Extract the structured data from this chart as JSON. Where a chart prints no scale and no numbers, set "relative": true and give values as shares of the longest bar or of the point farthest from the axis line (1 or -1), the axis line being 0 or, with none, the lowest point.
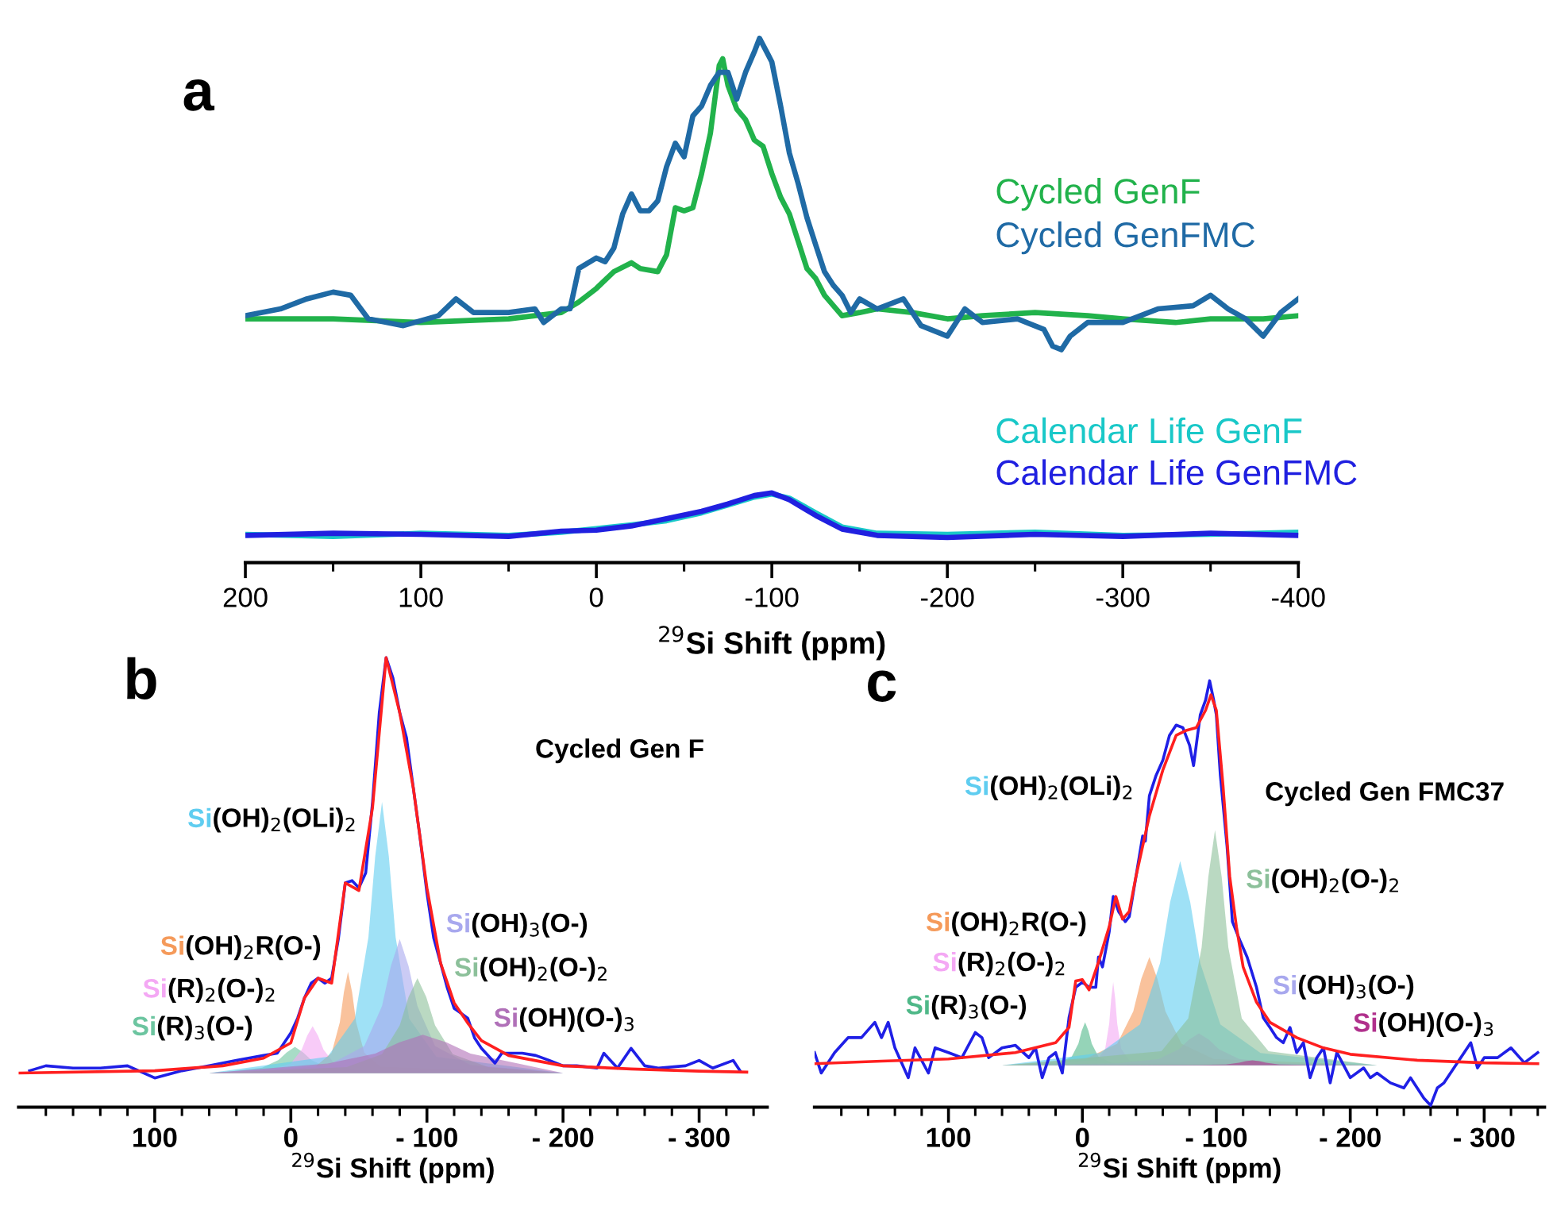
{
  "chart_data": [
    {
      "type": "line",
      "title": "a",
      "xlabel": "$^{29}$Si Shift (ppm)",
      "relative": true,
      "legend": "right",
      "grid": false,
      "xlim": [
        200,
        -400
      ],
      "xticks": [
        200,
        {
          "value": 150,
          "label": null
        },
        100,
        {
          "value": 50,
          "label": null
        },
        0,
        {
          "value": -50,
          "label": null
        },
        -100,
        {
          "value": -150,
          "label": null
        },
        -200,
        {
          "value": -250,
          "label": null
        },
        -300,
        {
          "value": -350,
          "label": null
        },
        -400
      ],
      "series": [
        {
          "name": "Cycled GenF",
          "color": "#21b24b",
          "x": [
            200,
            150,
            100,
            50,
            20,
            10,
            0,
            -10,
            -20,
            -25,
            -35,
            -40,
            -45,
            -50,
            -55,
            -60,
            -65,
            -70,
            -72,
            -75,
            -80,
            -85,
            -90,
            -95,
            -100,
            -105,
            -110,
            -115,
            -120,
            -125,
            -130,
            -140,
            -150,
            -160,
            -180,
            -200,
            -220,
            -250,
            -280,
            -300,
            -330,
            -350,
            -380,
            -400
          ],
          "values": [
            0.465,
            0.465,
            0.458,
            0.465,
            0.477,
            0.497,
            0.523,
            0.555,
            0.572,
            0.561,
            0.555,
            0.587,
            0.677,
            0.671,
            0.677,
            0.742,
            0.819,
            0.948,
            0.961,
            0.91,
            0.865,
            0.845,
            0.806,
            0.794,
            0.742,
            0.697,
            0.665,
            0.613,
            0.561,
            0.542,
            0.51,
            0.471,
            0.477,
            0.484,
            0.477,
            0.465,
            0.471,
            0.477,
            0.471,
            0.465,
            0.458,
            0.465,
            0.465,
            0.471
          ]
        },
        {
          "name": "Cycled GenFMC",
          "color": "#1f6aa5",
          "x": [
            200,
            180,
            165,
            150,
            140,
            130,
            110,
            90,
            80,
            70,
            50,
            35,
            30,
            20,
            15,
            10,
            0,
            -5,
            -10,
            -15,
            -20,
            -25,
            -30,
            -35,
            -40,
            -45,
            -50,
            -55,
            -60,
            -65,
            -70,
            -75,
            -80,
            -85,
            -90,
            -93,
            -98,
            -100,
            -105,
            -110,
            -115,
            -120,
            -125,
            -130,
            -135,
            -140,
            -145,
            -150,
            -160,
            -175,
            -185,
            -200,
            -210,
            -220,
            -240,
            -255,
            -260,
            -265,
            -270,
            -280,
            -300,
            -320,
            -340,
            -350,
            -360,
            -370,
            -380,
            -390,
            -400
          ],
          "values": [
            0.471,
            0.484,
            0.503,
            0.516,
            0.51,
            0.465,
            0.452,
            0.471,
            0.503,
            0.477,
            0.477,
            0.484,
            0.458,
            0.484,
            0.484,
            0.561,
            0.581,
            0.574,
            0.6,
            0.665,
            0.703,
            0.671,
            0.671,
            0.69,
            0.755,
            0.8,
            0.774,
            0.852,
            0.871,
            0.91,
            0.935,
            0.935,
            0.884,
            0.935,
            0.974,
            1.0,
            0.968,
            0.955,
            0.871,
            0.781,
            0.723,
            0.658,
            0.606,
            0.555,
            0.529,
            0.51,
            0.477,
            0.503,
            0.484,
            0.503,
            0.452,
            0.432,
            0.484,
            0.458,
            0.465,
            0.445,
            0.413,
            0.406,
            0.432,
            0.458,
            0.458,
            0.484,
            0.49,
            0.51,
            0.484,
            0.465,
            0.432,
            0.477,
            0.503
          ]
        },
        {
          "name": "Calendar Life GenF",
          "color": "#19c8c8",
          "x": [
            200,
            150,
            100,
            50,
            20,
            0,
            -20,
            -40,
            -60,
            -75,
            -90,
            -100,
            -110,
            -125,
            -140,
            -160,
            -200,
            -250,
            -300,
            -350,
            -400
          ],
          "values": [
            0.054,
            0.05,
            0.056,
            0.052,
            0.058,
            0.065,
            0.072,
            0.08,
            0.095,
            0.11,
            0.125,
            0.131,
            0.123,
            0.095,
            0.068,
            0.056,
            0.054,
            0.058,
            0.052,
            0.054,
            0.058
          ]
        },
        {
          "name": "Calendar Life GenFMC",
          "color": "#2020e0",
          "x": [
            200,
            150,
            100,
            50,
            20,
            0,
            -20,
            -40,
            -60,
            -75,
            -90,
            -100,
            -110,
            -125,
            -140,
            -160,
            -200,
            -250,
            -300,
            -350,
            -400
          ],
          "values": [
            0.052,
            0.056,
            0.054,
            0.05,
            0.06,
            0.062,
            0.07,
            0.084,
            0.098,
            0.112,
            0.128,
            0.133,
            0.12,
            0.09,
            0.064,
            0.052,
            0.048,
            0.054,
            0.05,
            0.056,
            0.052
          ]
        }
      ]
    },
    {
      "type": "line",
      "title": "b",
      "subtitle": "Cycled Gen F",
      "xlabel": "$^{29}$Si Shift (ppm)",
      "relative": true,
      "grid": false,
      "xlim": [
        200,
        -350
      ],
      "xticks": [
        {
          "value": 180,
          "label": null
        },
        {
          "value": 160,
          "label": null
        },
        {
          "value": 140,
          "label": null
        },
        {
          "value": 120,
          "label": null
        },
        100,
        {
          "value": 80,
          "label": null
        },
        {
          "value": 60,
          "label": null
        },
        {
          "value": 40,
          "label": null
        },
        {
          "value": 20,
          "label": null
        },
        0,
        {
          "value": -20,
          "label": null
        },
        {
          "value": -40,
          "label": null
        },
        {
          "value": -60,
          "label": null
        },
        {
          "value": -80,
          "label": null
        },
        {
          "value": -100,
          "label": "- 100"
        },
        {
          "value": -120,
          "label": null
        },
        {
          "value": -140,
          "label": null
        },
        {
          "value": -160,
          "label": null
        },
        {
          "value": -180,
          "label": null
        },
        {
          "value": -200,
          "label": "- 200"
        },
        {
          "value": -220,
          "label": null
        },
        {
          "value": -240,
          "label": null
        },
        {
          "value": -260,
          "label": null
        },
        {
          "value": -280,
          "label": null
        },
        {
          "value": -300,
          "label": "- 300"
        },
        {
          "value": -320,
          "label": null
        },
        {
          "value": -340,
          "label": null
        }
      ],
      "series": [
        {
          "type": "area",
          "name": "Si(R)$_{3}$(O-)",
          "color": "#6cc5a0",
          "x": [
            60,
            45,
            21,
            9,
            3,
            -3,
            -9,
            -15,
            -27,
            -51,
            -200
          ],
          "values": [
            0.076,
            0.079,
            0.088,
            0.105,
            0.122,
            0.134,
            0.122,
            0.105,
            0.088,
            0.079,
            0.076
          ]
        },
        {
          "type": "area",
          "name": "Si(R)$_{2}$(O-)$_{2}$",
          "color": "#f4a8f4",
          "x": [
            60,
            16,
            0,
            -8,
            -12,
            -16,
            -20,
            -24,
            -32,
            -48,
            -200
          ],
          "values": [
            0.076,
            0.082,
            0.097,
            0.128,
            0.159,
            0.18,
            0.159,
            0.128,
            0.097,
            0.082,
            0.076
          ]
        },
        {
          "type": "area",
          "name": "Si(OH)$_{2}$R(O-)",
          "color": "#f59a5a",
          "x": [
            60,
            -18,
            -30,
            -36,
            -39,
            -42,
            -45,
            -48,
            -54,
            -66,
            -200
          ],
          "values": [
            0.076,
            0.09,
            0.121,
            0.189,
            0.256,
            0.301,
            0.256,
            0.189,
            0.121,
            0.09,
            0.076
          ]
        },
        {
          "type": "area",
          "name": "Si(OH)$_{2}$(OLi)$_{2}$",
          "color": "#5fcdf0",
          "x": [
            60,
            -27,
            -47,
            -57,
            -62,
            -67,
            -72,
            -77,
            -87,
            -107,
            -200
          ],
          "values": [
            0.076,
            0.112,
            0.197,
            0.378,
            0.558,
            0.679,
            0.558,
            0.378,
            0.197,
            0.112,
            0.076
          ]
        },
        {
          "type": "area",
          "name": "Si(OH)$_{3}$(O-)",
          "color": "#a8a8ee",
          "x": [
            60,
            -28,
            -54,
            -67,
            -73.5,
            -80,
            -86.5,
            -93,
            -106,
            -132,
            -200
          ],
          "values": [
            0.076,
            0.094,
            0.136,
            0.225,
            0.314,
            0.374,
            0.314,
            0.225,
            0.136,
            0.094,
            0.076
          ]
        },
        {
          "type": "area",
          "name": "Si(OH)$_{2}$(O-)$_{2}$",
          "color": "#8cc09a",
          "x": [
            60,
            -41,
            -67,
            -80,
            -86.5,
            -93,
            -99.5,
            -106,
            -119,
            -145,
            -200
          ],
          "values": [
            0.076,
            0.089,
            0.118,
            0.182,
            0.245,
            0.287,
            0.245,
            0.182,
            0.118,
            0.089,
            0.076
          ]
        },
        {
          "type": "area",
          "name": "Si(OH)(O-)$_{3}$",
          "color": "#b070b8",
          "x": [
            60,
            -27,
            -62,
            -79.5,
            -97,
            -114.5,
            -132,
            -167,
            -200
          ],
          "values": [
            0.076,
            0.097,
            0.119,
            0.144,
            0.161,
            0.144,
            0.119,
            0.097,
            0.076
          ]
        },
        {
          "color": "#1f1fe6",
          "x": [
            192,
            180,
            160,
            140,
            120,
            100,
            80,
            60,
            40,
            20,
            10,
            0,
            -5,
            -10,
            -15,
            -20,
            -25,
            -30,
            -35,
            -40,
            -45,
            -50,
            -55,
            -60,
            -65,
            -70,
            -75,
            -80,
            -85,
            -90,
            -95,
            -100,
            -105,
            -110,
            -115,
            -120,
            -125,
            -130,
            -135,
            -140,
            -150,
            -155,
            -170,
            -180,
            -190,
            -200,
            -210,
            -225,
            -230,
            -240,
            -250,
            -260,
            -270,
            -290,
            -300,
            -310,
            -325,
            -330
          ],
          "values": [
            0.081,
            0.092,
            0.087,
            0.087,
            0.092,
            0.065,
            0.081,
            0.092,
            0.104,
            0.115,
            0.12,
            0.165,
            0.198,
            0.243,
            0.276,
            0.287,
            0.276,
            0.287,
            0.376,
            0.499,
            0.504,
            0.488,
            0.521,
            0.677,
            0.878,
            1.0,
            0.955,
            0.878,
            0.822,
            0.71,
            0.599,
            0.477,
            0.376,
            0.321,
            0.265,
            0.22,
            0.209,
            0.198,
            0.154,
            0.131,
            0.098,
            0.12,
            0.12,
            0.115,
            0.104,
            0.092,
            0.092,
            0.087,
            0.12,
            0.087,
            0.131,
            0.092,
            0.087,
            0.092,
            0.104,
            0.087,
            0.104,
            0.081
          ]
        },
        {
          "color": "#ff1f1f",
          "x": [
            200,
            100,
            50,
            20,
            0,
            -10,
            -20,
            -30,
            -40,
            -50,
            -60,
            -70,
            -80,
            -90,
            -100,
            -110,
            -120,
            -130,
            -140,
            -160,
            -200,
            -250,
            -300,
            -335
          ],
          "values": [
            0.076,
            0.081,
            0.092,
            0.109,
            0.143,
            0.243,
            0.287,
            0.276,
            0.499,
            0.482,
            0.666,
            1.0,
            0.878,
            0.71,
            0.488,
            0.321,
            0.232,
            0.187,
            0.148,
            0.115,
            0.092,
            0.085,
            0.08,
            0.078
          ]
        }
      ]
    },
    {
      "type": "line",
      "title": "c",
      "subtitle": "Cycled Gen FMC37",
      "xlabel": "$^{29}$Si Shift (ppm)",
      "relative": true,
      "grid": false,
      "xlim": [
        200,
        -345
      ],
      "xticks": [
        {
          "value": 180,
          "label": null
        },
        {
          "value": 160,
          "label": null
        },
        {
          "value": 140,
          "label": null
        },
        {
          "value": 120,
          "label": null
        },
        100,
        {
          "value": 80,
          "label": null
        },
        {
          "value": 60,
          "label": null
        },
        {
          "value": 40,
          "label": null
        },
        {
          "value": 20,
          "label": null
        },
        0,
        {
          "value": -20,
          "label": null
        },
        {
          "value": -40,
          "label": null
        },
        {
          "value": -60,
          "label": null
        },
        {
          "value": -80,
          "label": null
        },
        {
          "value": -100,
          "label": "- 100"
        },
        {
          "value": -120,
          "label": null
        },
        {
          "value": -140,
          "label": null
        },
        {
          "value": -160,
          "label": null
        },
        {
          "value": -180,
          "label": null
        },
        {
          "value": -200,
          "label": "- 200"
        },
        {
          "value": -220,
          "label": null
        },
        {
          "value": -240,
          "label": null
        },
        {
          "value": -260,
          "label": null
        },
        {
          "value": -280,
          "label": null
        },
        {
          "value": -300,
          "label": "- 300"
        },
        {
          "value": -320,
          "label": null
        },
        {
          "value": -340,
          "label": null
        }
      ],
      "series": [
        {
          "type": "area",
          "name": "Si(R)$_{3}$(O-)",
          "color": "#4fb888",
          "x": [
            60,
            18,
            8,
            3,
            0.5,
            -2,
            -4.5,
            -7,
            -12,
            -22,
            -220
          ],
          "values": [
            0.098,
            0.104,
            0.118,
            0.149,
            0.179,
            0.199,
            0.179,
            0.149,
            0.118,
            0.104,
            0.098
          ]
        },
        {
          "type": "area",
          "name": "Si(R)$_{2}$(O-)$_{2}$",
          "color": "#f4a8f4",
          "x": [
            60,
            -11,
            -17,
            -20,
            -21.5,
            -23,
            -24.5,
            -26,
            -29,
            -35,
            -220
          ],
          "values": [
            0.098,
            0.11,
            0.137,
            0.196,
            0.254,
            0.293,
            0.254,
            0.196,
            0.137,
            0.11,
            0.098
          ]
        },
        {
          "type": "area",
          "name": "Si(OH)$_{2}$R(O-)",
          "color": "#f59a5a",
          "x": [
            60,
            -2,
            -26,
            -38,
            -44,
            -50,
            -56,
            -62,
            -74,
            -98,
            -220
          ],
          "values": [
            0.098,
            0.113,
            0.149,
            0.225,
            0.301,
            0.352,
            0.301,
            0.225,
            0.149,
            0.113,
            0.098
          ]
        },
        {
          "type": "area",
          "name": "Si(OH)$_{2}$(OLi)$_{2}$",
          "color": "#5fcdf0",
          "x": [
            60,
            -13,
            -43,
            -58,
            -65.5,
            -73,
            -80.5,
            -88,
            -103,
            -133,
            -220
          ],
          "values": [
            0.098,
            0.127,
            0.194,
            0.338,
            0.481,
            0.577,
            0.481,
            0.338,
            0.194,
            0.127,
            0.098
          ]
        },
        {
          "type": "area",
          "name": "Si(OH)$_{3}$(O-)",
          "color": "#a8a8ee",
          "x": [
            60,
            -27,
            -57,
            -72,
            -79.5,
            -87,
            -94.5,
            -102,
            -117,
            -147,
            -220
          ],
          "values": [
            0.098,
            0.103,
            0.113,
            0.136,
            0.158,
            0.173,
            0.158,
            0.136,
            0.113,
            0.103,
            0.098
          ]
        },
        {
          "type": "area",
          "name": "Si(OH)$_{2}$(O-)$_{2}$",
          "color": "#8cc09a",
          "x": [
            60,
            -59,
            -79,
            -89,
            -94,
            -99,
            -104,
            -109,
            -119,
            -139,
            -220
          ],
          "values": [
            0.098,
            0.131,
            0.208,
            0.374,
            0.54,
            0.65,
            0.54,
            0.374,
            0.208,
            0.131,
            0.098
          ]
        },
        {
          "type": "area",
          "name": "Si(OH)(O-)$_{3}$",
          "color": "#b0308c",
          "x": [
            60,
            -87,
            -107,
            -117,
            -122,
            -127,
            -132,
            -137,
            -147,
            -167,
            -220
          ],
          "values": [
            0.098,
            0.099,
            0.1,
            0.104,
            0.108,
            0.11,
            0.108,
            0.104,
            0.1,
            0.099,
            0.098
          ]
        },
        {
          "color": "#1f1fe6",
          "x": [
            200,
            195,
            185,
            175,
            165,
            155,
            150,
            145,
            140,
            130,
            125,
            115,
            110,
            100,
            90,
            80,
            75,
            70,
            60,
            50,
            40,
            35,
            30,
            25,
            20,
            15,
            10,
            5,
            0,
            -5,
            -10,
            -12,
            -15,
            -20,
            -23,
            -27,
            -32,
            -35,
            -40,
            -45,
            -47,
            -50,
            -55,
            -60,
            -65,
            -70,
            -75,
            -80,
            -83,
            -88,
            -92,
            -95,
            -98,
            -100,
            -103,
            -108,
            -112,
            -118,
            -123,
            -130,
            -135,
            -140,
            -145,
            -150,
            -155,
            -160,
            -165,
            -170,
            -175,
            -180,
            -185,
            -190,
            -200,
            -210,
            -215,
            -220,
            -230,
            -240,
            -245,
            -255,
            -260,
            -265,
            -270,
            -280,
            -290,
            -295,
            -300,
            -310,
            -320,
            -330,
            -340
          ],
          "values": [
            0.128,
            0.08,
            0.128,
            0.163,
            0.163,
            0.199,
            0.163,
            0.199,
            0.139,
            0.069,
            0.139,
            0.08,
            0.139,
            0.128,
            0.116,
            0.175,
            0.163,
            0.116,
            0.139,
            0.145,
            0.116,
            0.139,
            0.069,
            0.116,
            0.128,
            0.08,
            0.21,
            0.281,
            0.293,
            0.281,
            0.281,
            0.352,
            0.329,
            0.411,
            0.494,
            0.459,
            0.435,
            0.447,
            0.541,
            0.636,
            0.624,
            0.73,
            0.778,
            0.813,
            0.872,
            0.896,
            0.89,
            0.849,
            0.801,
            0.92,
            0.955,
            1.0,
            0.955,
            0.92,
            0.778,
            0.612,
            0.435,
            0.388,
            0.352,
            0.281,
            0.21,
            0.187,
            0.163,
            0.151,
            0.187,
            0.128,
            0.151,
            0.069,
            0.116,
            0.139,
            0.057,
            0.128,
            0.069,
            0.092,
            0.069,
            0.08,
            0.057,
            0.045,
            0.069,
            0.021,
            0.004,
            0.045,
            0.057,
            0.104,
            0.151,
            0.092,
            0.116,
            0.116,
            0.139,
            0.104,
            0.128
          ]
        },
        {
          "color": "#ff1f1f",
          "x": [
            200,
            150,
            100,
            50,
            20,
            10,
            5,
            0,
            -5,
            -12,
            -20,
            -25,
            -30,
            -35,
            -40,
            -50,
            -60,
            -70,
            -78,
            -85,
            -92,
            -96,
            -100,
            -105,
            -110,
            -115,
            -120,
            -130,
            -140,
            -160,
            -180,
            -200,
            -250,
            -300,
            -340
          ],
          "values": [
            0.102,
            0.108,
            0.113,
            0.128,
            0.151,
            0.187,
            0.296,
            0.299,
            0.275,
            0.34,
            0.423,
            0.494,
            0.441,
            0.459,
            0.541,
            0.683,
            0.79,
            0.872,
            0.884,
            0.89,
            0.931,
            0.967,
            0.931,
            0.754,
            0.541,
            0.423,
            0.329,
            0.246,
            0.199,
            0.163,
            0.139,
            0.124,
            0.11,
            0.104,
            0.102
          ]
        }
      ]
    }
  ]
}
